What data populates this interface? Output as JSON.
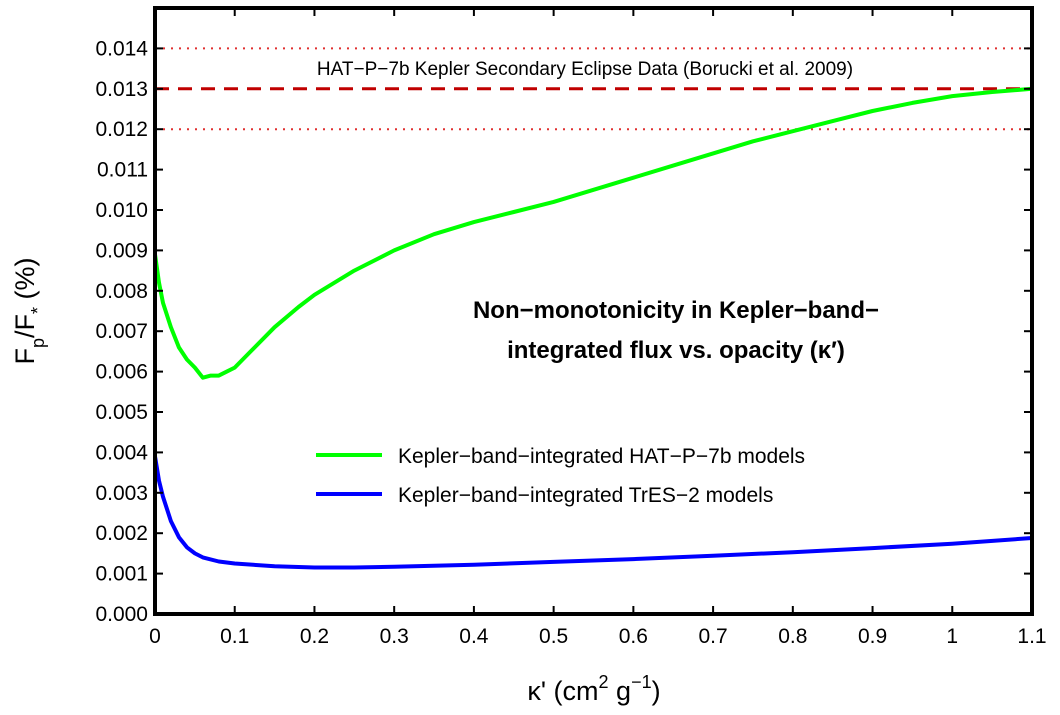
{
  "chart_data": {
    "type": "line",
    "title": "",
    "xlabel": {
      "base": "κ' (cm",
      "sup1": "2",
      "mid": " g",
      "sup2": "−1",
      "end": ")"
    },
    "ylabel": {
      "base": "F",
      "sub1": "p",
      "mid": "/F",
      "sub2": "*",
      "end": " (%)"
    },
    "xlim": [
      0,
      1.1
    ],
    "ylim": [
      0,
      0.015
    ],
    "x_ticks": [
      0,
      0.1,
      0.2,
      0.3,
      0.4,
      0.5,
      0.6,
      0.7,
      0.8,
      0.9,
      1.0,
      1.1
    ],
    "x_tick_labels": [
      "0",
      "0.1",
      "0.2",
      "0.3",
      "0.4",
      "0.5",
      "0.6",
      "0.7",
      "0.8",
      "0.9",
      "1",
      "1.1"
    ],
    "y_ticks": [
      0,
      0.001,
      0.002,
      0.003,
      0.004,
      0.005,
      0.006,
      0.007,
      0.008,
      0.009,
      0.01,
      0.011,
      0.012,
      0.013,
      0.014
    ],
    "y_tick_labels": [
      "0.000",
      "0.001",
      "0.002",
      "0.003",
      "0.004",
      "0.005",
      "0.006",
      "0.007",
      "0.008",
      "0.009",
      "0.010",
      "0.011",
      "0.012",
      "0.013",
      "0.014"
    ],
    "grid": false,
    "legend_position": "center-right",
    "series": [
      {
        "name": "Kepler−band−integrated HAT−P−7b models",
        "color": "#00ff00",
        "x": [
          0,
          0.005,
          0.01,
          0.02,
          0.03,
          0.04,
          0.05,
          0.06,
          0.07,
          0.08,
          0.09,
          0.1,
          0.12,
          0.15,
          0.18,
          0.2,
          0.25,
          0.3,
          0.35,
          0.4,
          0.45,
          0.5,
          0.55,
          0.6,
          0.65,
          0.7,
          0.75,
          0.8,
          0.85,
          0.9,
          0.95,
          1.0,
          1.05,
          1.1
        ],
        "y": [
          0.0089,
          0.0082,
          0.0077,
          0.0071,
          0.0066,
          0.0063,
          0.0061,
          0.00585,
          0.0059,
          0.0059,
          0.006,
          0.0061,
          0.0065,
          0.0071,
          0.0076,
          0.0079,
          0.0085,
          0.009,
          0.0094,
          0.0097,
          0.00995,
          0.0102,
          0.0105,
          0.0108,
          0.0111,
          0.0114,
          0.0117,
          0.01195,
          0.0122,
          0.01245,
          0.01265,
          0.01282,
          0.01292,
          0.013
        ]
      },
      {
        "name": "Kepler−band−integrated TrES−2 models",
        "color": "#0000ff",
        "x": [
          0,
          0.005,
          0.01,
          0.02,
          0.03,
          0.04,
          0.05,
          0.06,
          0.08,
          0.1,
          0.15,
          0.2,
          0.25,
          0.3,
          0.4,
          0.5,
          0.6,
          0.7,
          0.8,
          0.9,
          1.0,
          1.1
        ],
        "y": [
          0.0039,
          0.0033,
          0.0029,
          0.0023,
          0.0019,
          0.00165,
          0.0015,
          0.0014,
          0.0013,
          0.00125,
          0.00118,
          0.00115,
          0.00115,
          0.00117,
          0.00122,
          0.00129,
          0.00136,
          0.00144,
          0.00153,
          0.00163,
          0.00174,
          0.00188
        ]
      }
    ],
    "reference_lines": [
      {
        "y": 0.013,
        "style": "dashed",
        "color": "#c00000"
      },
      {
        "y": 0.014,
        "style": "dotted",
        "color": "#e03030"
      },
      {
        "y": 0.012,
        "style": "dotted",
        "color": "#e03030"
      }
    ],
    "annotations": {
      "data_label": "HAT−P−7b Kepler Secondary Eclipse Data (Borucki et al. 2009)",
      "note_line1": "Non−monotonicity in Kepler−band−",
      "note_line2": "integrated flux vs. opacity (κ′)"
    }
  }
}
